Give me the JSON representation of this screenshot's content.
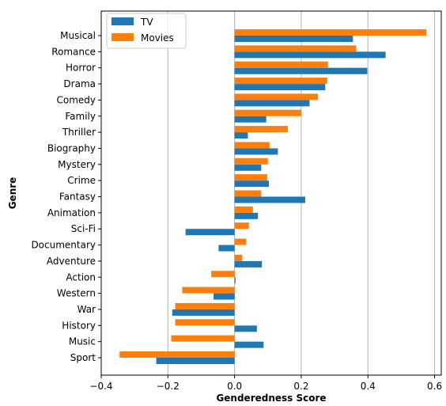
{
  "chart_data": {
    "type": "bar",
    "orientation": "horizontal",
    "title": "",
    "xlabel": "Genderedness Score",
    "ylabel": "Genre",
    "xlim": [
      -0.4,
      0.62
    ],
    "xticks": [
      "-0.4",
      "-0.2",
      "0.0",
      "0.2",
      "0.4",
      "0.6"
    ],
    "grid": "vertical",
    "legend_position": "top-left",
    "categories": [
      "Musical",
      "Romance",
      "Horror",
      "Drama",
      "Comedy",
      "Family",
      "Thriller",
      "Biography",
      "Mystery",
      "Crime",
      "Fantasy",
      "Animation",
      "Sci-Fi",
      "Documentary",
      "Adventure",
      "Action",
      "Western",
      "War",
      "History",
      "Music",
      "Sport"
    ],
    "series": [
      {
        "name": "TV",
        "color": "#1f77b4",
        "values": [
          0.355,
          0.453,
          0.398,
          0.272,
          0.225,
          0.095,
          0.04,
          0.13,
          0.08,
          0.103,
          0.212,
          0.07,
          -0.147,
          -0.048,
          0.082,
          0.003,
          -0.063,
          -0.187,
          0.067,
          0.087,
          -0.235
        ]
      },
      {
        "name": "Movies",
        "color": "#ff7f0e",
        "values": [
          0.575,
          0.365,
          0.28,
          0.278,
          0.25,
          0.2,
          0.16,
          0.105,
          0.1,
          0.098,
          0.08,
          0.055,
          0.043,
          0.035,
          0.023,
          -0.07,
          -0.157,
          -0.178,
          -0.178,
          -0.19,
          -0.345
        ]
      }
    ]
  }
}
